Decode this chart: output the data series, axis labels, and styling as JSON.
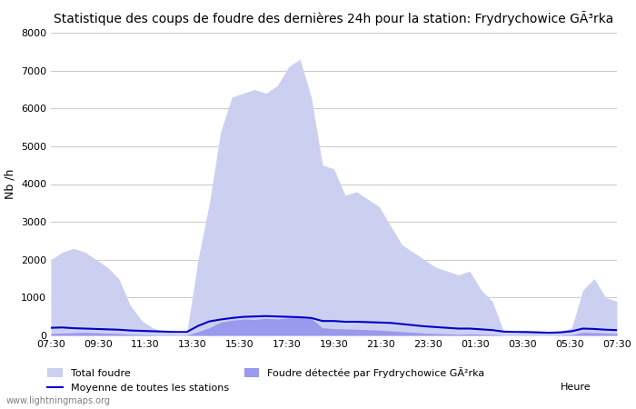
{
  "title": "Statistique des coups de foudre des dernières 24h pour la station: Frydrychowice GÃ³rka",
  "ylabel": "Nb /h",
  "xlabel": "Heure",
  "xlabels": [
    "07:30",
    "09:30",
    "11:30",
    "13:30",
    "15:30",
    "17:30",
    "19:30",
    "21:30",
    "23:30",
    "01:30",
    "03:30",
    "05:30",
    "07:30"
  ],
  "ylim": [
    0,
    8000
  ],
  "yticks": [
    0,
    1000,
    2000,
    3000,
    4000,
    5000,
    6000,
    7000,
    8000
  ],
  "bg_color": "#ffffff",
  "grid_color": "#cccccc",
  "fill_total_color": "#ccd0f0",
  "fill_local_color": "#9999ee",
  "line_mean_color": "#0000cc",
  "watermark": "www.lightningmaps.org",
  "legend_total": "Total foudre",
  "legend_mean": "Moyenne de toutes les stations",
  "legend_local": "Foudre détectée par Frydrychowice GÃ²rka",
  "total_foudre": [
    2000,
    2200,
    2300,
    2200,
    2000,
    1800,
    1500,
    800,
    400,
    200,
    100,
    50,
    50,
    2000,
    3500,
    5400,
    6300,
    6400,
    6500,
    6400,
    6600,
    7100,
    7300,
    6300,
    4500,
    4400,
    3700,
    3800,
    3600,
    3400,
    2900,
    2400,
    2200,
    2000,
    1800,
    1700,
    1600,
    1700,
    1200,
    900,
    100,
    50,
    100,
    100,
    50,
    100,
    200,
    1200,
    1500,
    1000,
    900
  ],
  "local_foudre": [
    50,
    60,
    70,
    80,
    70,
    60,
    50,
    30,
    20,
    10,
    5,
    5,
    5,
    100,
    200,
    350,
    400,
    430,
    420,
    450,
    430,
    460,
    470,
    440,
    200,
    180,
    170,
    160,
    150,
    140,
    120,
    100,
    80,
    60,
    50,
    40,
    30,
    40,
    30,
    20,
    5,
    3,
    5,
    4,
    3,
    5,
    20,
    80,
    70,
    60,
    50
  ],
  "mean_line": [
    200,
    210,
    190,
    180,
    170,
    160,
    150,
    130,
    120,
    110,
    100,
    90,
    90,
    250,
    370,
    420,
    460,
    490,
    500,
    510,
    500,
    490,
    480,
    460,
    380,
    380,
    360,
    360,
    350,
    340,
    330,
    300,
    270,
    240,
    220,
    200,
    180,
    180,
    160,
    140,
    100,
    90,
    90,
    80,
    70,
    80,
    110,
    180,
    170,
    150,
    140
  ]
}
